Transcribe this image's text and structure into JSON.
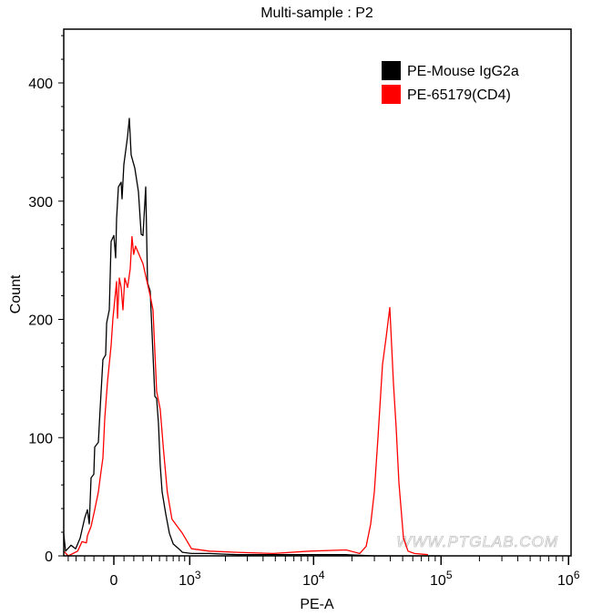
{
  "chart_data": {
    "type": "line",
    "title": "Multi-sample : P2",
    "xlabel": "PE-A",
    "ylabel": "Count",
    "x_scale": "biexponential",
    "xlim": [
      -560,
      1000000
    ],
    "ylim": [
      0,
      445
    ],
    "x_ticks": [
      {
        "value": 0,
        "label": "0"
      },
      {
        "value": 1000,
        "base": "10",
        "exp": "3"
      },
      {
        "value": 10000,
        "base": "10",
        "exp": "4"
      },
      {
        "value": 100000,
        "base": "10",
        "exp": "5"
      },
      {
        "value": 1000000,
        "base": "10",
        "exp": "6"
      }
    ],
    "y_ticks": [
      0,
      100,
      200,
      300,
      400
    ],
    "grid": false,
    "legend_position": "top-right",
    "watermark": "WWW.PTGLAB.COM",
    "series": [
      {
        "name": "PE-Mouse IgG2a",
        "color": "#000000",
        "x": [
          -562,
          -535,
          -463,
          -406,
          -351,
          -299,
          -269,
          -249,
          -230,
          -201,
          -191,
          -154,
          -135,
          -108,
          -81,
          -71,
          -45,
          -27,
          0,
          18,
          27,
          45,
          72,
          81,
          99,
          136,
          154,
          172,
          210,
          249,
          279,
          299,
          330,
          351,
          383,
          417,
          440,
          463,
          487,
          510,
          535,
          588,
          641,
          700,
          793,
          858,
          1037,
          1477,
          2470,
          4820,
          9310,
          18000,
          30000,
          60000,
          100000
        ],
        "y": [
          19,
          4,
          9,
          6,
          15,
          32,
          39,
          27,
          66,
          69,
          92,
          96,
          125,
          166,
          170,
          197,
          208,
          266,
          271,
          252,
          285,
          312,
          316,
          302,
          331,
          355,
          370,
          339,
          328,
          308,
          272,
          271,
          312,
          231,
          224,
          170,
          135,
          133,
          112,
          77,
          54,
          35,
          19,
          10,
          6,
          3,
          2,
          2,
          1,
          1,
          1,
          1,
          0,
          0,
          0
        ]
      },
      {
        "name": "PE-65179(CD4)",
        "color": "#ff0000",
        "x": [
          -562,
          -500,
          -380,
          -330,
          -280,
          -269,
          -230,
          -191,
          -154,
          -135,
          -108,
          -90,
          -63,
          -27,
          -9,
          27,
          36,
          54,
          72,
          90,
          108,
          136,
          163,
          181,
          199,
          218,
          299,
          383,
          417,
          463,
          510,
          556,
          610,
          680,
          858,
          1037,
          1477,
          2470,
          4820,
          9310,
          18000,
          23000,
          25850,
          28050,
          29970,
          32010,
          34750,
          37110,
          39660,
          42330,
          44500,
          46730,
          50720,
          55060,
          61820,
          79000
        ],
        "y": [
          4,
          0,
          4,
          12,
          11,
          17,
          25,
          39,
          54,
          66,
          83,
          116,
          147,
          178,
          201,
          232,
          201,
          235,
          227,
          208,
          235,
          227,
          243,
          270,
          255,
          262,
          247,
          220,
          208,
          139,
          124,
          89,
          54,
          31,
          19,
          6,
          4,
          3,
          2,
          4,
          5,
          2,
          8,
          27,
          54,
          100,
          162,
          185,
          210,
          146,
          108,
          62,
          15,
          4,
          2,
          1
        ]
      }
    ]
  }
}
